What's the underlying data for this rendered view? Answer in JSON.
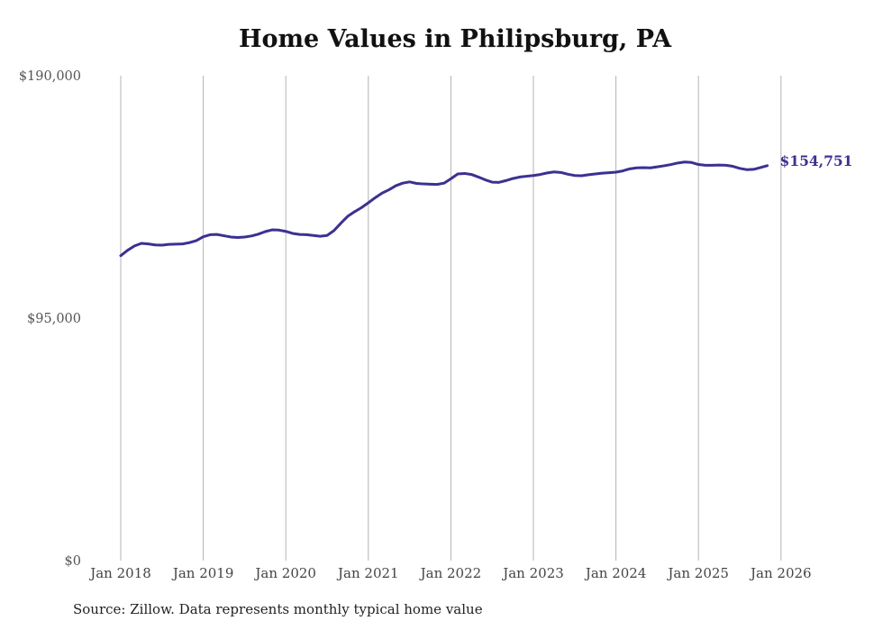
{
  "chart_data": {
    "type": "line",
    "title": "Home Values in Philipsburg, PA",
    "source": "Source: Zillow. Data represents monthly typical home value",
    "ylim": [
      0,
      190000
    ],
    "yticks": [
      {
        "value": 190000,
        "label": "$190,000"
      },
      {
        "value": 95000,
        "label": "$95,000"
      },
      {
        "value": 0,
        "label": "$0"
      }
    ],
    "xticks": [
      {
        "x": "2018-01",
        "label": "Jan 2018"
      },
      {
        "x": "2019-01",
        "label": "Jan 2019"
      },
      {
        "x": "2020-01",
        "label": "Jan 2020"
      },
      {
        "x": "2021-01",
        "label": "Jan 2021"
      },
      {
        "x": "2022-01",
        "label": "Jan 2022"
      },
      {
        "x": "2023-01",
        "label": "Jan 2023"
      },
      {
        "x": "2024-01",
        "label": "Jan 2024"
      },
      {
        "x": "2025-01",
        "label": "Jan 2025"
      },
      {
        "x": "2026-01",
        "label": "Jan 2026"
      }
    ],
    "grid": "vertical",
    "line_color": "#3b3191",
    "end_label": "$154,751",
    "series": [
      {
        "points": [
          [
            "2018-01",
            119500
          ],
          [
            "2018-02",
            121600
          ],
          [
            "2018-03",
            123300
          ],
          [
            "2018-04",
            124300
          ],
          [
            "2018-05",
            124100
          ],
          [
            "2018-06",
            123700
          ],
          [
            "2018-07",
            123600
          ],
          [
            "2018-08",
            123900
          ],
          [
            "2018-09",
            124000
          ],
          [
            "2018-10",
            124100
          ],
          [
            "2018-11",
            124600
          ],
          [
            "2018-12",
            125400
          ],
          [
            "2019-01",
            126900
          ],
          [
            "2019-02",
            127700
          ],
          [
            "2019-03",
            127800
          ],
          [
            "2019-04",
            127300
          ],
          [
            "2019-05",
            126800
          ],
          [
            "2019-06",
            126600
          ],
          [
            "2019-07",
            126800
          ],
          [
            "2019-08",
            127200
          ],
          [
            "2019-09",
            127900
          ],
          [
            "2019-10",
            128900
          ],
          [
            "2019-11",
            129600
          ],
          [
            "2019-12",
            129500
          ],
          [
            "2020-01",
            129000
          ],
          [
            "2020-02",
            128200
          ],
          [
            "2020-03",
            127800
          ],
          [
            "2020-04",
            127700
          ],
          [
            "2020-05",
            127400
          ],
          [
            "2020-06",
            127100
          ],
          [
            "2020-07",
            127400
          ],
          [
            "2020-08",
            129300
          ],
          [
            "2020-09",
            132200
          ],
          [
            "2020-10",
            134900
          ],
          [
            "2020-11",
            136700
          ],
          [
            "2020-12",
            138300
          ],
          [
            "2021-01",
            140200
          ],
          [
            "2021-02",
            142200
          ],
          [
            "2021-03",
            144000
          ],
          [
            "2021-04",
            145300
          ],
          [
            "2021-05",
            146900
          ],
          [
            "2021-06",
            147900
          ],
          [
            "2021-07",
            148400
          ],
          [
            "2021-08",
            147800
          ],
          [
            "2021-09",
            147600
          ],
          [
            "2021-10",
            147500
          ],
          [
            "2021-11",
            147400
          ],
          [
            "2021-12",
            147900
          ],
          [
            "2022-01",
            149600
          ],
          [
            "2022-02",
            151500
          ],
          [
            "2022-03",
            151700
          ],
          [
            "2022-04",
            151300
          ],
          [
            "2022-05",
            150300
          ],
          [
            "2022-06",
            149200
          ],
          [
            "2022-07",
            148300
          ],
          [
            "2022-08",
            148200
          ],
          [
            "2022-09",
            148900
          ],
          [
            "2022-10",
            149700
          ],
          [
            "2022-11",
            150300
          ],
          [
            "2022-12",
            150600
          ],
          [
            "2023-01",
            150900
          ],
          [
            "2023-02",
            151300
          ],
          [
            "2023-03",
            151900
          ],
          [
            "2023-04",
            152300
          ],
          [
            "2023-05",
            152100
          ],
          [
            "2023-06",
            151400
          ],
          [
            "2023-07",
            150900
          ],
          [
            "2023-08",
            150800
          ],
          [
            "2023-09",
            151200
          ],
          [
            "2023-10",
            151500
          ],
          [
            "2023-11",
            151800
          ],
          [
            "2023-12",
            152000
          ],
          [
            "2024-01",
            152200
          ],
          [
            "2024-02",
            152700
          ],
          [
            "2024-03",
            153500
          ],
          [
            "2024-04",
            153900
          ],
          [
            "2024-05",
            154000
          ],
          [
            "2024-06",
            153900
          ],
          [
            "2024-07",
            154300
          ],
          [
            "2024-08",
            154700
          ],
          [
            "2024-09",
            155200
          ],
          [
            "2024-10",
            155800
          ],
          [
            "2024-11",
            156200
          ],
          [
            "2024-12",
            156000
          ],
          [
            "2025-01",
            155200
          ],
          [
            "2025-02",
            154900
          ],
          [
            "2025-03",
            154900
          ],
          [
            "2025-04",
            155000
          ],
          [
            "2025-05",
            154900
          ],
          [
            "2025-06",
            154500
          ],
          [
            "2025-07",
            153700
          ],
          [
            "2025-08",
            153200
          ],
          [
            "2025-09",
            153300
          ],
          [
            "2025-10",
            154000
          ],
          [
            "2025-11",
            154751
          ]
        ]
      }
    ]
  }
}
